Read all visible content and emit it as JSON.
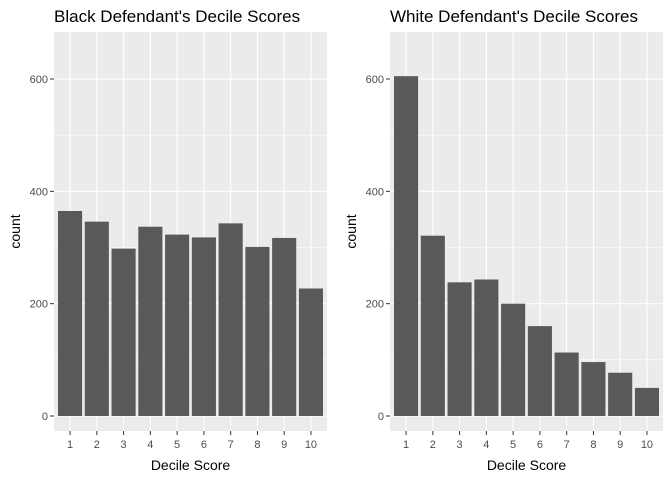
{
  "colors": {
    "bar": "#595959",
    "panel": "#ebebeb",
    "grid": "#ffffff"
  },
  "chart_data": [
    {
      "type": "bar",
      "title": "Black Defendant's Decile Scores",
      "xlabel": "Decile Score",
      "ylabel": "count",
      "categories": [
        "1",
        "2",
        "3",
        "4",
        "5",
        "6",
        "7",
        "8",
        "9",
        "10"
      ],
      "values": [
        365,
        346,
        298,
        337,
        323,
        318,
        343,
        301,
        317,
        227
      ],
      "ylim": [
        0,
        680
      ],
      "yticks": [
        0,
        200,
        400,
        600
      ],
      "grid": true,
      "legend": "none"
    },
    {
      "type": "bar",
      "title": "White Defendant's Decile Scores",
      "xlabel": "Decile Score",
      "ylabel": "count",
      "categories": [
        "1",
        "2",
        "3",
        "4",
        "5",
        "6",
        "7",
        "8",
        "9",
        "10"
      ],
      "values": [
        605,
        321,
        238,
        243,
        200,
        160,
        113,
        96,
        77,
        50
      ],
      "ylim": [
        0,
        680
      ],
      "yticks": [
        0,
        200,
        400,
        600
      ],
      "grid": true,
      "legend": "none"
    }
  ]
}
